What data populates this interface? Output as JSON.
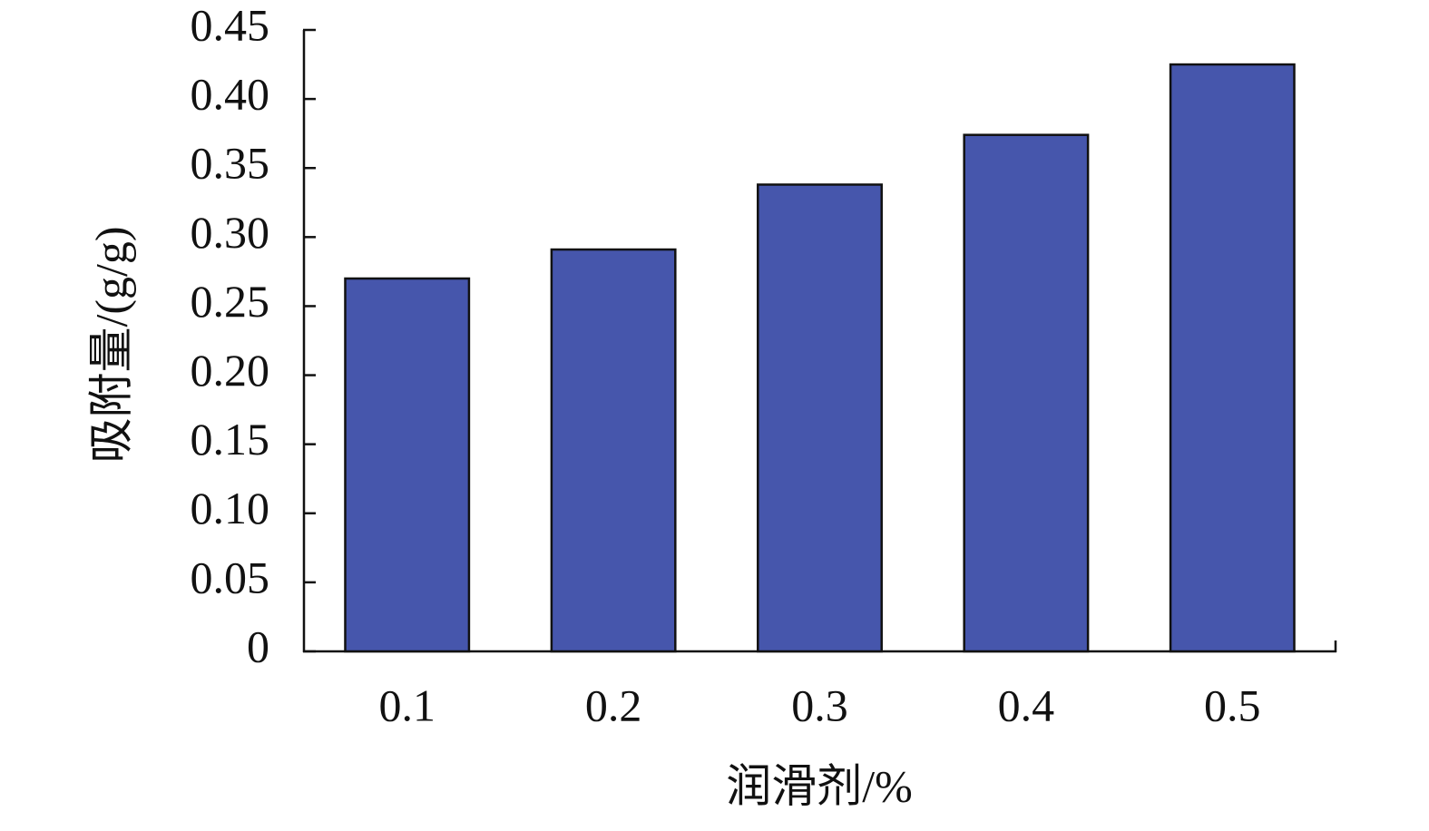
{
  "chart_data": {
    "type": "bar",
    "x_label": "润滑剂/%",
    "y_label": "吸附量/(g/g)",
    "categories": [
      "0.1",
      "0.2",
      "0.3",
      "0.4",
      "0.5"
    ],
    "values": [
      0.27,
      0.291,
      0.338,
      0.374,
      0.425
    ],
    "color": "#4656ac",
    "ylim": [
      0,
      0.45
    ],
    "yticks": [
      0,
      0.05,
      {
        "value": 0.1,
        "label": "0.10"
      },
      0.15,
      {
        "value": 0.2,
        "label": "0.20"
      },
      0.25,
      {
        "value": 0.3,
        "label": "0.30"
      },
      0.35,
      {
        "value": 0.4,
        "label": "0.40"
      },
      0.45
    ],
    "grid": false
  }
}
